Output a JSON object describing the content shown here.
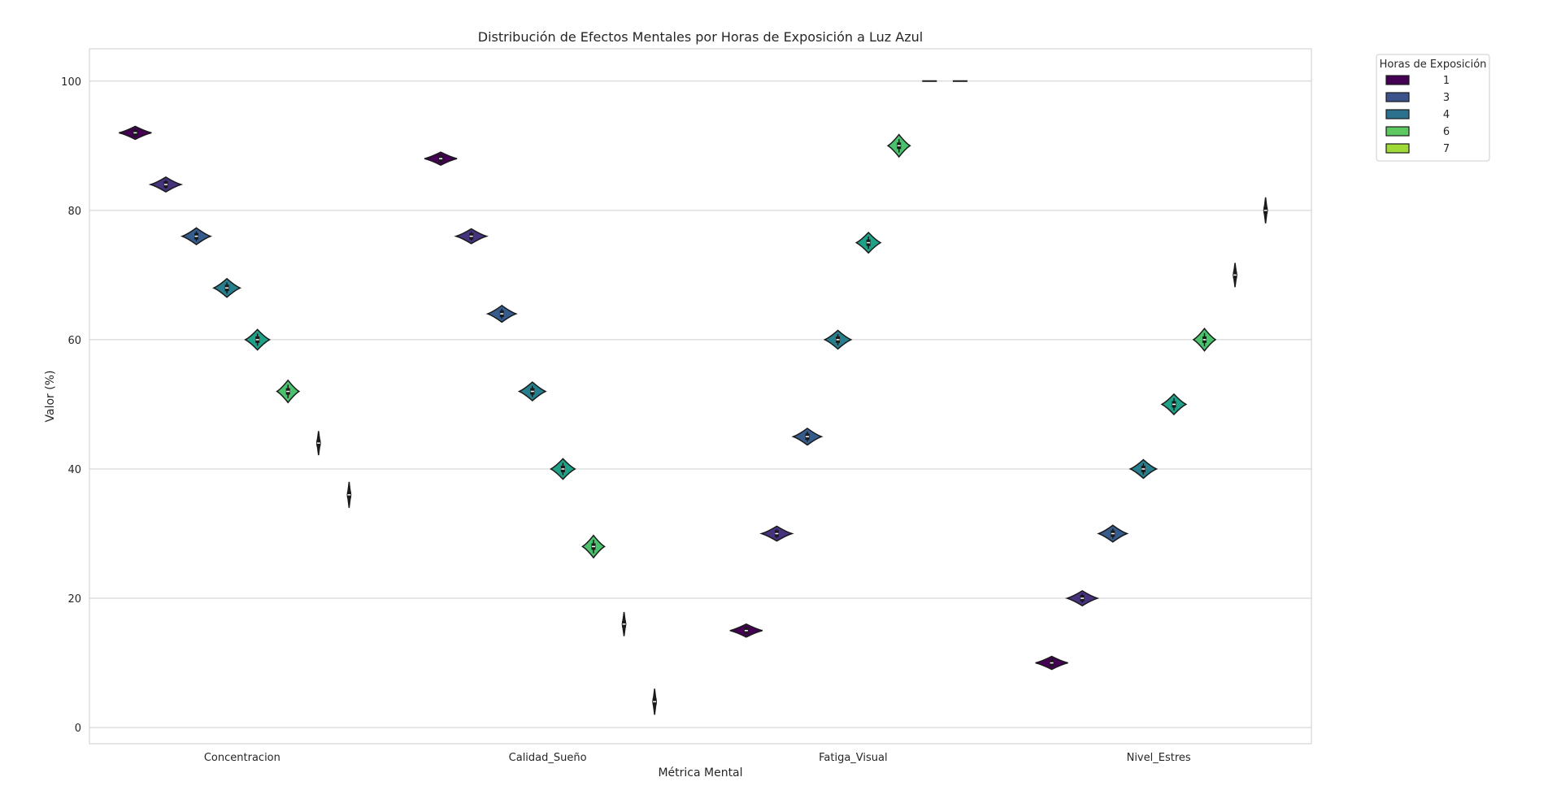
{
  "chart_data": {
    "type": "violin",
    "title": "Distribución de Efectos Mentales por Horas de Exposición a Luz Azul",
    "xlabel": "Métrica Mental",
    "ylabel": "Valor (%)",
    "ylim": [
      -2.5,
      105
    ],
    "yticks": [
      0,
      20,
      40,
      60,
      80,
      100
    ],
    "grid": true,
    "categories": [
      "Concentracion",
      "Calidad_Sueño",
      "Fatiga_Visual",
      "Nivel_Estres"
    ],
    "legend": {
      "title": "Horas de Exposición",
      "placement": "outside-top-right",
      "entries": [
        {
          "label": "1",
          "color": "#440154"
        },
        {
          "label": "3",
          "color": "#3b528b"
        },
        {
          "label": "4",
          "color": "#2c728e"
        },
        {
          "label": "6",
          "color": "#5ec962"
        },
        {
          "label": "7",
          "color": "#a0da39"
        }
      ]
    },
    "hue_slots": 8,
    "series": [
      {
        "slot": 0,
        "color": "#440154",
        "values": [
          92,
          88,
          15,
          10
        ]
      },
      {
        "slot": 1,
        "color": "#46337e",
        "values": [
          84,
          76,
          30,
          20
        ]
      },
      {
        "slot": 2,
        "color": "#365c8d",
        "values": [
          76,
          64,
          45,
          30
        ]
      },
      {
        "slot": 3,
        "color": "#277f8e",
        "values": [
          68,
          52,
          60,
          40
        ]
      },
      {
        "slot": 4,
        "color": "#1fa187",
        "values": [
          60,
          40,
          75,
          50
        ]
      },
      {
        "slot": 5,
        "color": "#4ac16d",
        "values": [
          52,
          28,
          90,
          60
        ]
      },
      {
        "slot": 6,
        "color": "#a0da39",
        "values": [
          44,
          16,
          100,
          70
        ]
      },
      {
        "slot": 7,
        "color": "#fde725",
        "values": [
          36,
          4,
          100,
          80
        ]
      }
    ]
  }
}
